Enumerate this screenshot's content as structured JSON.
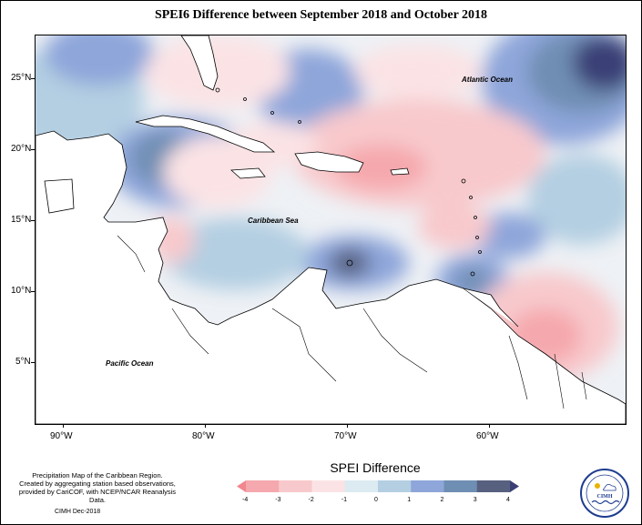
{
  "title": "SPEI6 Difference between September 2018 and October 2018",
  "map": {
    "labels": {
      "atlantic": "Atlantic Ocean",
      "caribbean": "Caribbean Sea",
      "pacific": "Pacific Ocean"
    },
    "lat_ticks": [
      "25°N",
      "20°N",
      "15°N",
      "10°N",
      "5°N"
    ],
    "lon_ticks": [
      "90°W",
      "80°W",
      "70°W",
      "60°W"
    ]
  },
  "legend": {
    "title": "SPEI Difference",
    "ticks": [
      "-4",
      "-3",
      "-2",
      "-1",
      "0",
      "1",
      "2",
      "3",
      "4"
    ],
    "colors": [
      "#f2868f",
      "#f5a8ad",
      "#f8c9cc",
      "#fbe3e5",
      "#dcebf1",
      "#b4cfe2",
      "#8ea6da",
      "#6f8eb3",
      "#57617f",
      "#3b3f76"
    ]
  },
  "footer": {
    "note_lines": [
      "Precipitation Map of the Caribbean Region.",
      "Created by aggregating station based observations,",
      "provided by CariCOF, with NCEP/NCAR Reanalysis Data."
    ],
    "date": "CIMH Dec-2018"
  },
  "logo": {
    "text": "CIMH"
  }
}
